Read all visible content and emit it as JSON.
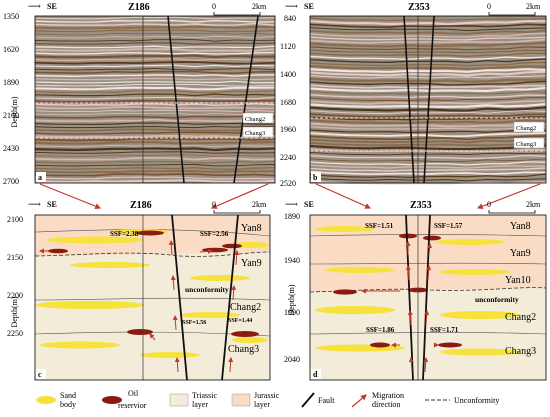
{
  "panels": {
    "a": {
      "letter": "a",
      "well": "Z186",
      "direction": "SE",
      "scale": "2km",
      "scale_zero": "0",
      "ylabel": "Depth(m)",
      "ticks": [
        "1350",
        "1620",
        "1890",
        "2160",
        "2430",
        "2700"
      ],
      "callouts": [
        "Chang2",
        "Chang3"
      ]
    },
    "b": {
      "letter": "b",
      "well": "Z353",
      "direction": "SE",
      "scale": "2km",
      "scale_zero": "0",
      "ticks": [
        "840",
        "1120",
        "1400",
        "1680",
        "1960",
        "2240",
        "2520"
      ],
      "callouts": [
        "Chang2",
        "Chang3"
      ]
    },
    "c": {
      "letter": "c",
      "well": "Z186",
      "direction": "SE",
      "scale": "2km",
      "scale_zero": "0",
      "ylabel": "Depth(m)",
      "ticks": [
        "2100",
        "2150",
        "2200",
        "2250"
      ],
      "layers": [
        "Yan8",
        "Yan9",
        "Chang2",
        "Chang3"
      ],
      "unconformity": "unconformity",
      "ssf": [
        "SSF=2.38",
        "SSF=2.56",
        "SSF=1.56",
        "SSF=1.44"
      ]
    },
    "d": {
      "letter": "d",
      "well": "Z353",
      "direction": "SE",
      "scale": "2km",
      "scale_zero": "0",
      "ylabel": "Depth(m)",
      "ticks": [
        "1890",
        "1940",
        "1990",
        "2040"
      ],
      "layers": [
        "Yan8",
        "Yan9",
        "Yan10",
        "Chang2",
        "Chang3"
      ],
      "unconformity": "unconformity",
      "ssf": [
        "SSF=1.51",
        "SSF=1.57",
        "SSF=1.86",
        "SSF=1.71"
      ]
    }
  },
  "legend": {
    "sand": [
      "Sand",
      "body"
    ],
    "oil": [
      "Oil",
      "reservior"
    ],
    "triassic": [
      "Triassic",
      "layer"
    ],
    "jurassic": [
      "Jurassic",
      "layer"
    ],
    "fault": "Fault",
    "migration": [
      "Migration",
      "direction"
    ],
    "unconformity": "Unconformity"
  },
  "colors": {
    "triassic": "#f3ecd9",
    "jurassic": "#fadcc4",
    "sand": "#f6e23a",
    "oil": "#8a1a12",
    "arrow": "#c0392b",
    "fault": "#111111"
  }
}
